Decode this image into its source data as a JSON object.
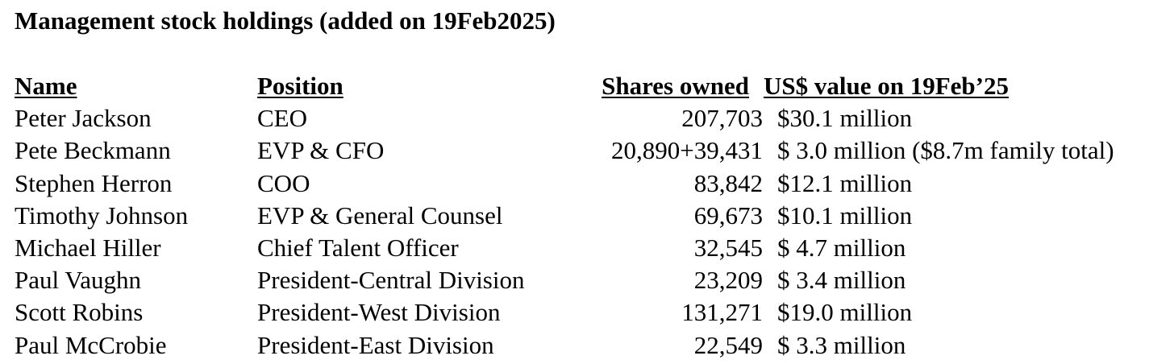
{
  "title": "Management stock holdings (added on 19Feb2025)",
  "headers": {
    "name": "Name",
    "position": "Position",
    "shares": "Shares owned",
    "value": "US$ value on 19Feb’25"
  },
  "rows": [
    {
      "name": "Peter Jackson",
      "position": "CEO",
      "shares": "207,703",
      "value": "$30.1 million"
    },
    {
      "name": "Pete Beckmann",
      "position": "EVP & CFO",
      "shares": "20,890+39,431",
      "value": "$ 3.0 million ($8.7m family total)"
    },
    {
      "name": "Stephen Herron",
      "position": "COO",
      "shares": "83,842",
      "value": "$12.1 million"
    },
    {
      "name": "Timothy Johnson",
      "position": "EVP & General Counsel",
      "shares": "69,673",
      "value": "$10.1 million"
    },
    {
      "name": "Michael Hiller",
      "position": "Chief Talent Officer",
      "shares": "32,545",
      "value": "$ 4.7 million"
    },
    {
      "name": "Paul Vaughn",
      "position": "President-Central Division",
      "shares": "23,209",
      "value": "$ 3.4 million"
    },
    {
      "name": "Scott Robins",
      "position": "President-West Division",
      "shares": "131,271",
      "value": "$19.0 million"
    },
    {
      "name": "Paul McCrobie",
      "position": "President-East Division",
      "shares": "22,549",
      "value": "$ 3.3 million"
    }
  ]
}
